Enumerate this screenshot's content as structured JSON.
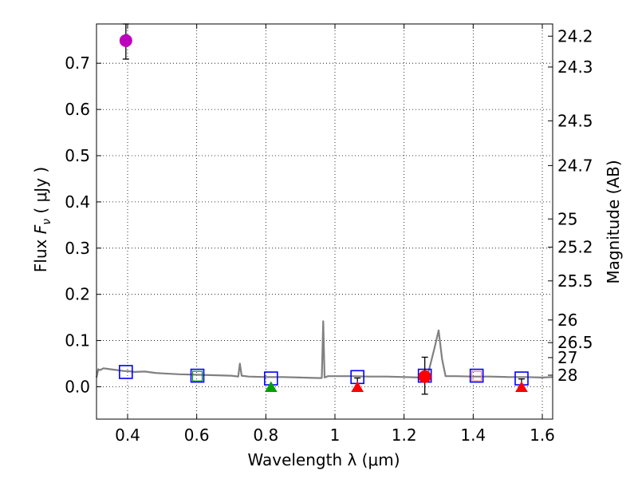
{
  "chart_data": {
    "type": "scatter",
    "xlabel": "Wavelength  λ (μm)",
    "ylabel": "Flux  F_ν  ( μJy )",
    "ylabel_parts": {
      "prefix": "Flux  ",
      "symbol": "F",
      "subscript": "ν",
      "suffix": "  ( μJy )"
    },
    "y2label": "Magnitude (AB)",
    "xlim": [
      0.31,
      1.63
    ],
    "ylim": [
      -0.07,
      0.785
    ],
    "grid": true,
    "xticks": [
      {
        "value": 0.4,
        "label": "0.4"
      },
      {
        "value": 0.6,
        "label": "0.6"
      },
      {
        "value": 0.8,
        "label": "0.8"
      },
      {
        "value": 1.0,
        "label": "1"
      },
      {
        "value": 1.2,
        "label": "1.2"
      },
      {
        "value": 1.4,
        "label": "1.4"
      },
      {
        "value": 1.6,
        "label": "1.6"
      }
    ],
    "yticks": [
      {
        "value": 0.0,
        "label": "0.0"
      },
      {
        "value": 0.1,
        "label": "0.1"
      },
      {
        "value": 0.2,
        "label": "0.2"
      },
      {
        "value": 0.3,
        "label": "0.3"
      },
      {
        "value": 0.4,
        "label": "0.4"
      },
      {
        "value": 0.5,
        "label": "0.5"
      },
      {
        "value": 0.6,
        "label": "0.6"
      },
      {
        "value": 0.7,
        "label": "0.7"
      }
    ],
    "y2ticks": [
      {
        "label": "24.2",
        "flux": 0.7586
      },
      {
        "label": "24.3",
        "flux": 0.6918
      },
      {
        "label": "24.5",
        "flux": 0.5754
      },
      {
        "label": "24.7",
        "flux": 0.4786
      },
      {
        "label": "25",
        "flux": 0.3631
      },
      {
        "label": "25.2",
        "flux": 0.302
      },
      {
        "label": "25.5",
        "flux": 0.2291
      },
      {
        "label": "26",
        "flux": 0.1445
      },
      {
        "label": "26.5",
        "flux": 0.0955
      },
      {
        "label": "27",
        "flux": 0.0631
      },
      {
        "label": "28",
        "flux": 0.025
      }
    ],
    "model_spectrum": {
      "color": "#808080",
      "x": [
        0.31,
        0.315,
        0.32,
        0.33,
        0.35,
        0.37,
        0.39,
        0.4,
        0.42,
        0.45,
        0.48,
        0.5,
        0.55,
        0.6,
        0.65,
        0.7,
        0.72,
        0.725,
        0.73,
        0.75,
        0.8,
        0.85,
        0.9,
        0.95,
        0.962,
        0.966,
        0.97,
        0.98,
        1.0,
        1.05,
        1.1,
        1.15,
        1.2,
        1.25,
        1.27,
        1.29,
        1.3,
        1.31,
        1.32,
        1.35,
        1.4,
        1.45,
        1.5,
        1.55,
        1.6,
        1.63
      ],
      "y": [
        0.02,
        0.038,
        0.036,
        0.04,
        0.038,
        0.036,
        0.034,
        0.034,
        0.032,
        0.033,
        0.03,
        0.029,
        0.027,
        0.026,
        0.025,
        0.024,
        0.022,
        0.05,
        0.024,
        0.022,
        0.021,
        0.021,
        0.02,
        0.019,
        0.019,
        0.142,
        0.02,
        0.023,
        0.023,
        0.023,
        0.022,
        0.022,
        0.021,
        0.02,
        0.03,
        0.09,
        0.122,
        0.06,
        0.023,
        0.023,
        0.022,
        0.022,
        0.021,
        0.021,
        0.02,
        0.021
      ]
    },
    "series": [
      {
        "name": "model-bands",
        "marker": "open-square",
        "color": "#0000ff",
        "points": [
          {
            "x": 0.395,
            "y": 0.032
          },
          {
            "x": 0.602,
            "y": 0.024
          },
          {
            "x": 0.815,
            "y": 0.018
          },
          {
            "x": 1.065,
            "y": 0.021
          },
          {
            "x": 1.26,
            "y": 0.024
          },
          {
            "x": 1.41,
            "y": 0.024
          },
          {
            "x": 1.54,
            "y": 0.018
          }
        ]
      },
      {
        "name": "detection-purple",
        "marker": "circle",
        "color": "#bf00bf",
        "points": [
          {
            "x": 0.395,
            "y": 0.749,
            "err_low": 0.04,
            "err_high": 0.036
          }
        ]
      },
      {
        "name": "detection-red",
        "marker": "circle",
        "color": "#ff0000",
        "points": [
          {
            "x": 1.26,
            "y": 0.022,
            "err_low": 0.038,
            "err_high": 0.042
          }
        ]
      },
      {
        "name": "upper-limit-green",
        "marker": "triangle",
        "color": "#00a000",
        "points": [
          {
            "x": 0.815,
            "y": 0.0
          }
        ]
      },
      {
        "name": "upper-limit-red",
        "marker": "triangle",
        "color": "#ff0000",
        "points": [
          {
            "x": 1.065,
            "y": 0.0,
            "err_high": 0.019
          },
          {
            "x": 1.54,
            "y": 0.0,
            "err_high": 0.017
          }
        ]
      },
      {
        "name": "inner-squares",
        "marker": "small-open-square",
        "color": "#00a000",
        "points": [
          {
            "x": 0.602,
            "y": 0.023
          }
        ]
      },
      {
        "name": "inner-squares-red",
        "marker": "small-open-square",
        "color": "#ff8080",
        "points": [
          {
            "x": 1.41,
            "y": 0.023
          }
        ]
      }
    ]
  }
}
